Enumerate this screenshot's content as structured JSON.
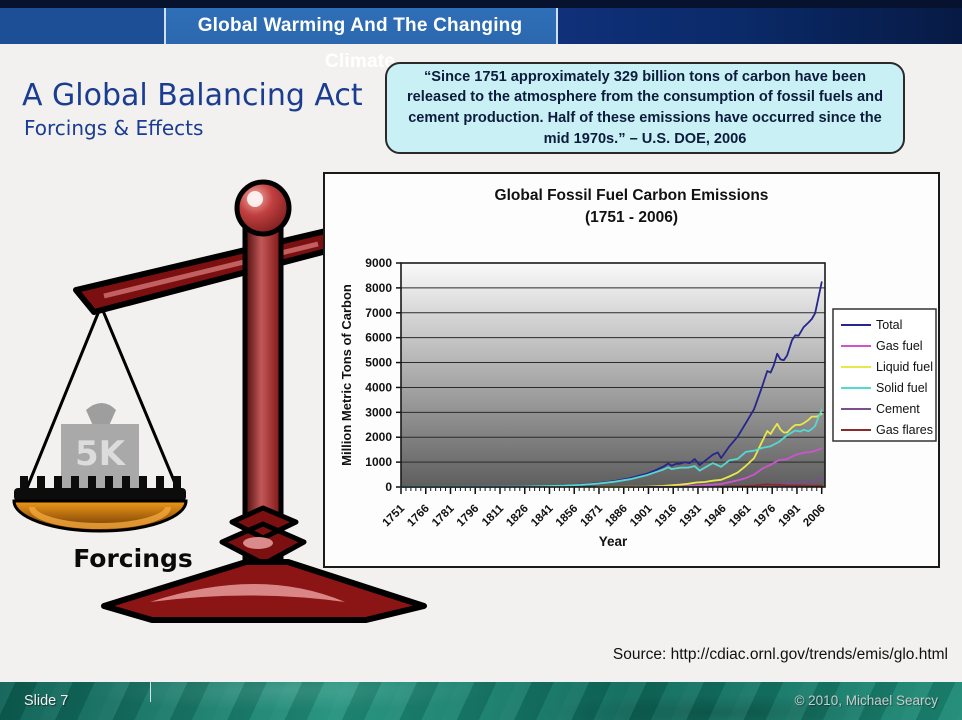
{
  "header": {
    "title": "Global Warming And The Changing Climate"
  },
  "slide": {
    "title": "A Global Balancing Act",
    "subtitle": "Forcings & Effects",
    "quote": "“Since 1751 approximately 329 billion tons of carbon have been released to the atmosphere from the consumption of fossil fuels and cement production. Half of these emissions have occurred since the mid 1970s.” – U.S. DOE, 2006",
    "source": "Source: http://cdiac.ornl.gov/trends/emis/glo.html",
    "scale": {
      "weight_label": "5K",
      "pan_label": "Forcings"
    }
  },
  "footer": {
    "slide_number": "Slide 7",
    "copyright": "© 2010, Michael Searcy"
  },
  "colors": {
    "top-strip": "#06122e",
    "header-left": "#1d4f97",
    "header-center": "#2b68ae",
    "header-right": "#0a2a69",
    "title-blue": "#1b3d91",
    "quote-bg": "#c9f1f5",
    "footer-teal-dark": "#0c5f53",
    "footer-teal-light": "#21917c"
  },
  "chart_data": {
    "type": "line",
    "title": "Global Fossil Fuel Carbon Emissions",
    "subtitle": "(1751 - 2006)",
    "xlabel": "Year",
    "ylabel": "Million Metric Tons of Carbon",
    "xlim": [
      1751,
      2008
    ],
    "ylim": [
      0,
      9000
    ],
    "ytick_step": 1000,
    "xticks": [
      1751,
      1766,
      1781,
      1796,
      1811,
      1826,
      1841,
      1856,
      1871,
      1886,
      1901,
      1916,
      1931,
      1946,
      1961,
      1976,
      1991,
      2006
    ],
    "grid": true,
    "legend_position": "right",
    "plot_bg_gradient": [
      "#fafafa",
      "#5e5e5e"
    ],
    "series": [
      {
        "name": "Total",
        "color": "#26268c",
        "points": [
          [
            1751,
            3
          ],
          [
            1775,
            5
          ],
          [
            1800,
            8
          ],
          [
            1825,
            17
          ],
          [
            1850,
            54
          ],
          [
            1860,
            91
          ],
          [
            1870,
            147
          ],
          [
            1880,
            236
          ],
          [
            1890,
            356
          ],
          [
            1900,
            534
          ],
          [
            1905,
            663
          ],
          [
            1910,
            819
          ],
          [
            1913,
            945
          ],
          [
            1915,
            855
          ],
          [
            1918,
            936
          ],
          [
            1920,
            932
          ],
          [
            1923,
            1000
          ],
          [
            1926,
            960
          ],
          [
            1929,
            1120
          ],
          [
            1932,
            880
          ],
          [
            1936,
            1090
          ],
          [
            1940,
            1299
          ],
          [
            1943,
            1390
          ],
          [
            1945,
            1160
          ],
          [
            1950,
            1630
          ],
          [
            1955,
            2020
          ],
          [
            1960,
            2569
          ],
          [
            1965,
            3130
          ],
          [
            1970,
            4053
          ],
          [
            1973,
            4660
          ],
          [
            1975,
            4596
          ],
          [
            1977,
            4900
          ],
          [
            1979,
            5350
          ],
          [
            1981,
            5127
          ],
          [
            1983,
            5094
          ],
          [
            1985,
            5282
          ],
          [
            1988,
            5900
          ],
          [
            1990,
            6096
          ],
          [
            1992,
            6079
          ],
          [
            1995,
            6420
          ],
          [
            1998,
            6610
          ],
          [
            2000,
            6750
          ],
          [
            2002,
            6980
          ],
          [
            2004,
            7600
          ],
          [
            2006,
            8230
          ]
        ]
      },
      {
        "name": "Gas fuel",
        "color": "#cc55cc",
        "points": [
          [
            1890,
            3
          ],
          [
            1900,
            6
          ],
          [
            1910,
            12
          ],
          [
            1920,
            21
          ],
          [
            1930,
            57
          ],
          [
            1940,
            95
          ],
          [
            1945,
            120
          ],
          [
            1950,
            187
          ],
          [
            1955,
            266
          ],
          [
            1960,
            357
          ],
          [
            1965,
            500
          ],
          [
            1970,
            740
          ],
          [
            1975,
            890
          ],
          [
            1980,
            1080
          ],
          [
            1985,
            1120
          ],
          [
            1990,
            1290
          ],
          [
            1995,
            1380
          ],
          [
            2000,
            1410
          ],
          [
            2003,
            1480
          ],
          [
            2006,
            1560
          ]
        ]
      },
      {
        "name": "Liquid fuel",
        "color": "#e8e84a",
        "points": [
          [
            1870,
            1
          ],
          [
            1880,
            3
          ],
          [
            1890,
            9
          ],
          [
            1900,
            16
          ],
          [
            1910,
            43
          ],
          [
            1920,
            94
          ],
          [
            1925,
            130
          ],
          [
            1930,
            180
          ],
          [
            1935,
            200
          ],
          [
            1940,
            254
          ],
          [
            1945,
            290
          ],
          [
            1950,
            423
          ],
          [
            1955,
            580
          ],
          [
            1960,
            849
          ],
          [
            1965,
            1160
          ],
          [
            1970,
            1840
          ],
          [
            1973,
            2250
          ],
          [
            1975,
            2130
          ],
          [
            1977,
            2350
          ],
          [
            1979,
            2540
          ],
          [
            1981,
            2310
          ],
          [
            1983,
            2190
          ],
          [
            1985,
            2190
          ],
          [
            1988,
            2390
          ],
          [
            1990,
            2490
          ],
          [
            1993,
            2500
          ],
          [
            1995,
            2560
          ],
          [
            1998,
            2700
          ],
          [
            2000,
            2830
          ],
          [
            2003,
            2830
          ],
          [
            2006,
            2940
          ]
        ]
      },
      {
        "name": "Solid fuel",
        "color": "#55d8d0",
        "points": [
          [
            1751,
            3
          ],
          [
            1800,
            8
          ],
          [
            1825,
            17
          ],
          [
            1850,
            52
          ],
          [
            1860,
            85
          ],
          [
            1870,
            135
          ],
          [
            1880,
            210
          ],
          [
            1890,
            315
          ],
          [
            1900,
            479
          ],
          [
            1905,
            590
          ],
          [
            1910,
            700
          ],
          [
            1913,
            790
          ],
          [
            1915,
            720
          ],
          [
            1920,
            775
          ],
          [
            1925,
            780
          ],
          [
            1929,
            840
          ],
          [
            1932,
            660
          ],
          [
            1936,
            810
          ],
          [
            1940,
            960
          ],
          [
            1945,
            810
          ],
          [
            1950,
            1070
          ],
          [
            1955,
            1130
          ],
          [
            1960,
            1410
          ],
          [
            1965,
            1460
          ],
          [
            1970,
            1570
          ],
          [
            1975,
            1640
          ],
          [
            1980,
            1810
          ],
          [
            1985,
            2080
          ],
          [
            1990,
            2270
          ],
          [
            1993,
            2230
          ],
          [
            1995,
            2300
          ],
          [
            1998,
            2240
          ],
          [
            2000,
            2330
          ],
          [
            2002,
            2450
          ],
          [
            2004,
            2800
          ],
          [
            2006,
            3090
          ]
        ]
      },
      {
        "name": "Cement",
        "color": "#7a4f8f",
        "points": [
          [
            1900,
            3
          ],
          [
            1920,
            7
          ],
          [
            1930,
            10
          ],
          [
            1940,
            15
          ],
          [
            1950,
            18
          ],
          [
            1960,
            43
          ],
          [
            1970,
            78
          ],
          [
            1980,
            120
          ],
          [
            1990,
            157
          ],
          [
            1995,
            190
          ],
          [
            2000,
            226
          ],
          [
            2003,
            280
          ],
          [
            2006,
            356
          ]
        ]
      },
      {
        "name": "Gas flares",
        "color": "#8b2a2a",
        "points": [
          [
            1945,
            5
          ],
          [
            1950,
            23
          ],
          [
            1955,
            28
          ],
          [
            1960,
            39
          ],
          [
            1965,
            55
          ],
          [
            1970,
            87
          ],
          [
            1973,
            110
          ],
          [
            1975,
            95
          ],
          [
            1980,
            89
          ],
          [
            1985,
            64
          ],
          [
            1990,
            59
          ],
          [
            1995,
            62
          ],
          [
            2000,
            46
          ],
          [
            2003,
            50
          ],
          [
            2006,
            60
          ]
        ]
      }
    ]
  }
}
